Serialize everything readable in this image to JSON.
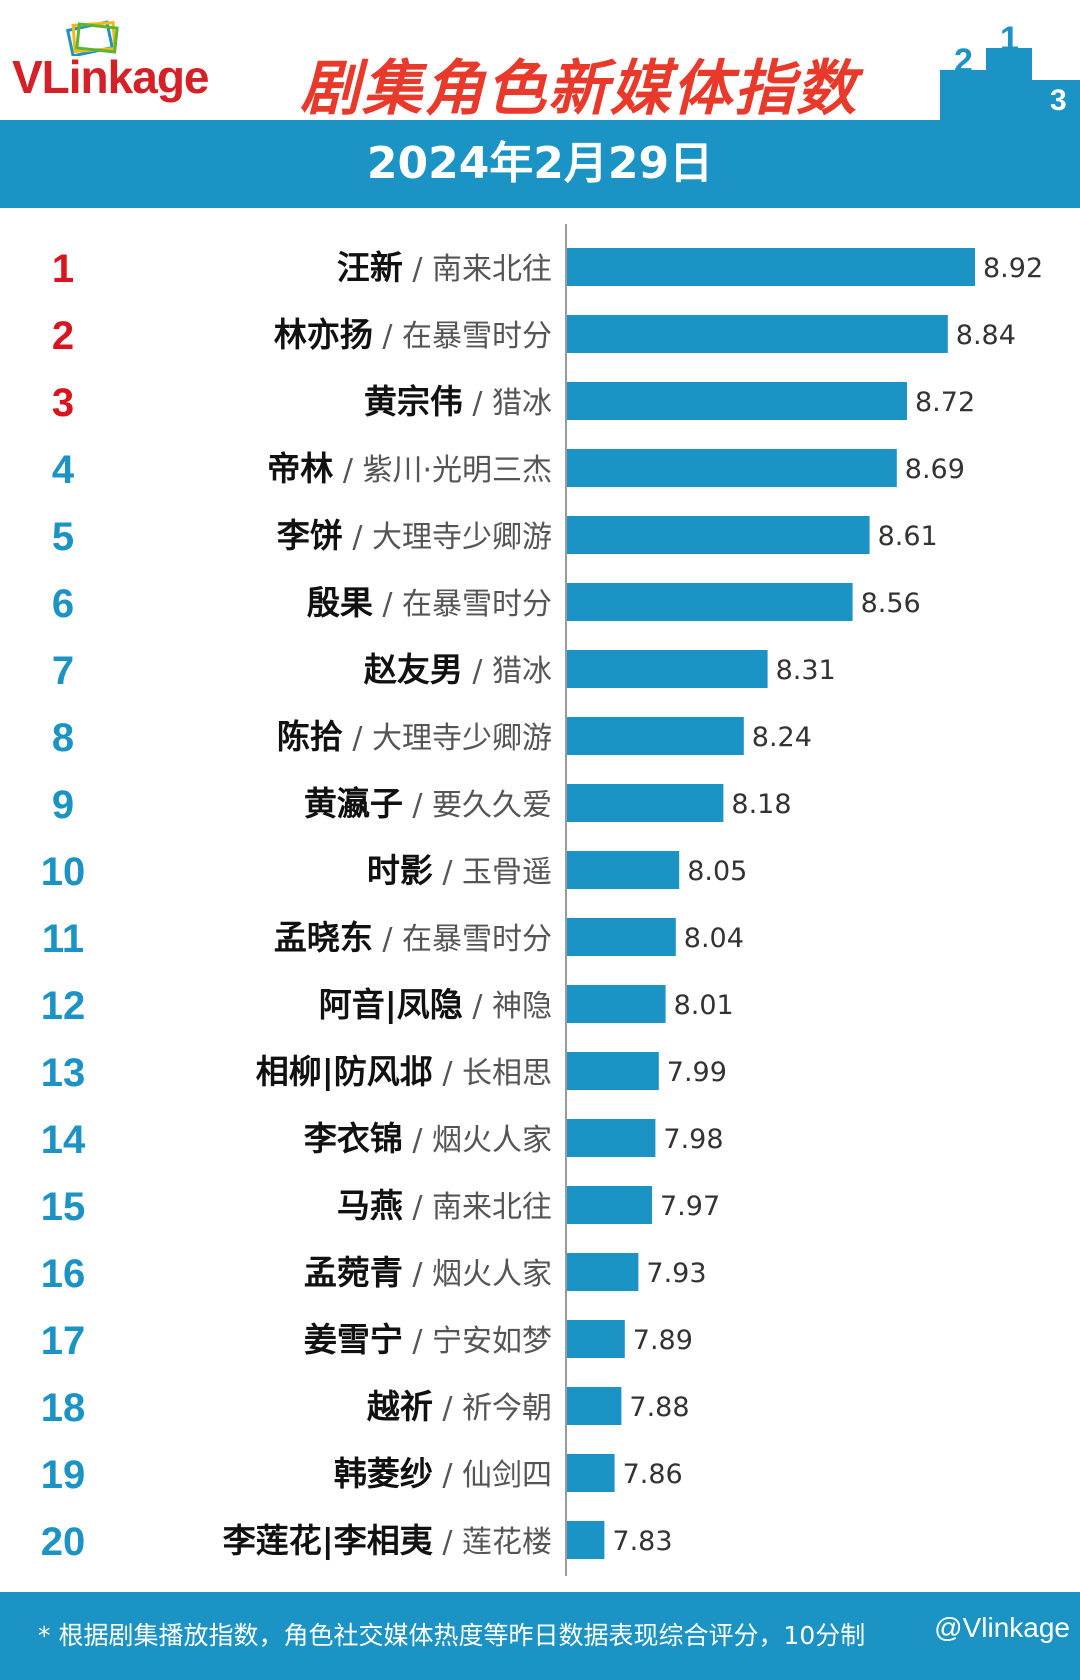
{
  "header": {
    "logo_text_v": "VL",
    "logo_text_link": "ink",
    "logo_text_age": "age",
    "title": "剧集角色新媒体指数",
    "podium_labels": [
      "2",
      "1",
      "3"
    ]
  },
  "date": "2024年2月29日",
  "chart_data": {
    "type": "bar",
    "orientation": "horizontal",
    "ranks": [
      "1",
      "2",
      "3",
      "4",
      "5",
      "6",
      "7",
      "8",
      "9",
      "10",
      "11",
      "12",
      "13",
      "14",
      "15",
      "16",
      "17",
      "18",
      "19",
      "20"
    ],
    "categories": [
      {
        "character": "汪新",
        "drama": "南来北往"
      },
      {
        "character": "林亦扬",
        "drama": "在暴雪时分"
      },
      {
        "character": "黄宗伟",
        "drama": "猎冰"
      },
      {
        "character": "帝林",
        "drama": "紫川·光明三杰"
      },
      {
        "character": "李饼",
        "drama": "大理寺少卿游"
      },
      {
        "character": "殷果",
        "drama": "在暴雪时分"
      },
      {
        "character": "赵友男",
        "drama": "猎冰"
      },
      {
        "character": "陈拾",
        "drama": "大理寺少卿游"
      },
      {
        "character": "黄瀛子",
        "drama": "要久久爱"
      },
      {
        "character": "时影",
        "drama": "玉骨遥"
      },
      {
        "character": "孟晓东",
        "drama": "在暴雪时分"
      },
      {
        "character": "阿音|凤隐",
        "drama": "神隐"
      },
      {
        "character": "相柳|防风邶",
        "drama": "长相思"
      },
      {
        "character": "李衣锦",
        "drama": "烟火人家"
      },
      {
        "character": "马燕",
        "drama": "南来北往"
      },
      {
        "character": "孟菀青",
        "drama": "烟火人家"
      },
      {
        "character": "姜雪宁",
        "drama": "宁安如梦"
      },
      {
        "character": "越祈",
        "drama": "祈今朝"
      },
      {
        "character": "韩菱纱",
        "drama": "仙剑四"
      },
      {
        "character": "李莲花|李相夷",
        "drama": "莲花楼"
      }
    ],
    "values": [
      8.92,
      8.84,
      8.72,
      8.69,
      8.61,
      8.56,
      8.31,
      8.24,
      8.18,
      8.05,
      8.04,
      8.01,
      7.99,
      7.98,
      7.97,
      7.93,
      7.89,
      7.88,
      7.86,
      7.83
    ],
    "value_labels": [
      "8.92",
      "8.84",
      "8.72",
      "8.69",
      "8.61",
      "8.56",
      "8.31",
      "8.24",
      "8.18",
      "8.05",
      "8.04",
      "8.01",
      "7.99",
      "7.98",
      "7.97",
      "7.93",
      "7.89",
      "7.88",
      "7.86",
      "7.83"
    ],
    "xlim": [
      7.72,
      8.92
    ],
    "separator": "/",
    "colors": {
      "bar": "#1b93c4",
      "rank_top": "#d9141e",
      "rank_other": "#1b93c4",
      "character": "#111111",
      "drama": "#555555",
      "value": "#333333"
    }
  },
  "footer": {
    "note": "* 根据剧集播放指数，角色社交媒体热度等昨日数据表现综合评分，10分制",
    "watermark": "@Vlinkage"
  }
}
